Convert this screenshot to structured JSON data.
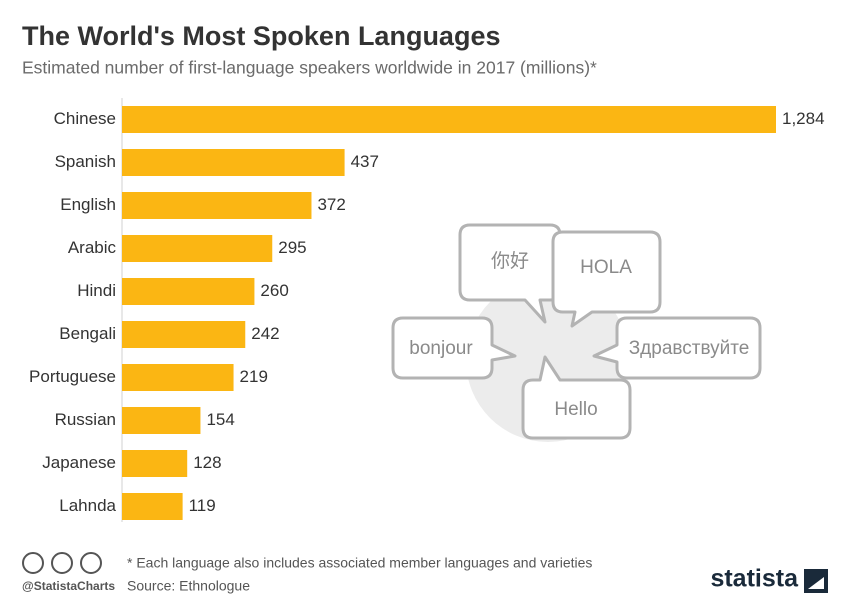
{
  "chart_data": {
    "type": "bar",
    "orientation": "horizontal",
    "title": "The World's Most Spoken Languages",
    "subtitle": "Estimated number of first-language speakers worldwide in 2017 (millions)*",
    "categories": [
      "Chinese",
      "Spanish",
      "English",
      "Arabic",
      "Hindi",
      "Bengali",
      "Portuguese",
      "Russian",
      "Japanese",
      "Lahnda"
    ],
    "values": [
      1284,
      437,
      372,
      295,
      260,
      242,
      219,
      154,
      128,
      119
    ],
    "value_labels": [
      "1,284",
      "437",
      "372",
      "295",
      "260",
      "242",
      "219",
      "154",
      "128",
      "119"
    ],
    "color": "#fbb613",
    "illustration": {
      "greetings": [
        "你好",
        "HOLA",
        "bonjour",
        "Здравствуйте",
        "Hello"
      ]
    },
    "footer": {
      "note": "* Each language also includes associated member languages and varieties",
      "source": "Source: Ethnologue",
      "handle": "@StatistaCharts",
      "brand": "statista"
    }
  }
}
